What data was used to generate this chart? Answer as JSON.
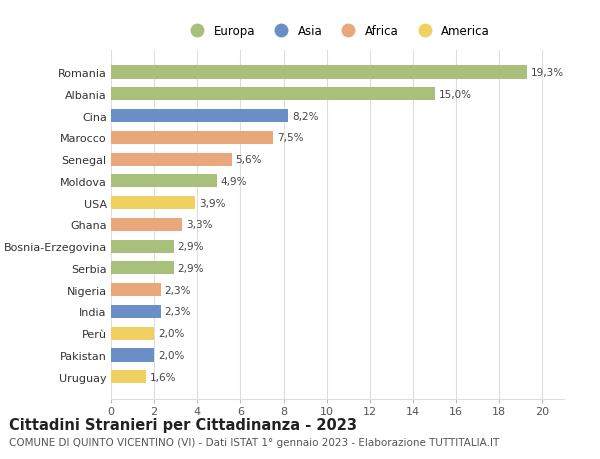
{
  "countries": [
    "Romania",
    "Albania",
    "Cina",
    "Marocco",
    "Senegal",
    "Moldova",
    "USA",
    "Ghana",
    "Bosnia-Erzegovina",
    "Serbia",
    "Nigeria",
    "India",
    "Perù",
    "Pakistan",
    "Uruguay"
  ],
  "values": [
    19.3,
    15.0,
    8.2,
    7.5,
    5.6,
    4.9,
    3.9,
    3.3,
    2.9,
    2.9,
    2.3,
    2.3,
    2.0,
    2.0,
    1.6
  ],
  "labels": [
    "19,3%",
    "15,0%",
    "8,2%",
    "7,5%",
    "5,6%",
    "4,9%",
    "3,9%",
    "3,3%",
    "2,9%",
    "2,9%",
    "2,3%",
    "2,3%",
    "2,0%",
    "2,0%",
    "1,6%"
  ],
  "continents": [
    "Europa",
    "Europa",
    "Asia",
    "Africa",
    "Africa",
    "Europa",
    "America",
    "Africa",
    "Europa",
    "Europa",
    "Africa",
    "Asia",
    "America",
    "Asia",
    "America"
  ],
  "continent_colors": {
    "Europa": "#a8c07a",
    "Asia": "#6b8ec4",
    "Africa": "#e8a87c",
    "America": "#f0d060"
  },
  "legend_order": [
    "Europa",
    "Asia",
    "Africa",
    "America"
  ],
  "title": "Cittadini Stranieri per Cittadinanza - 2023",
  "subtitle": "COMUNE DI QUINTO VICENTINO (VI) - Dati ISTAT 1° gennaio 2023 - Elaborazione TUTTITALIA.IT",
  "xlim": [
    0,
    21
  ],
  "xticks": [
    0,
    2,
    4,
    6,
    8,
    10,
    12,
    14,
    16,
    18,
    20
  ],
  "background_color": "#ffffff",
  "grid_color": "#dddddd",
  "bar_height": 0.6,
  "title_fontsize": 10.5,
  "subtitle_fontsize": 7.5,
  "tick_fontsize": 8,
  "label_fontsize": 7.5,
  "legend_fontsize": 8.5
}
